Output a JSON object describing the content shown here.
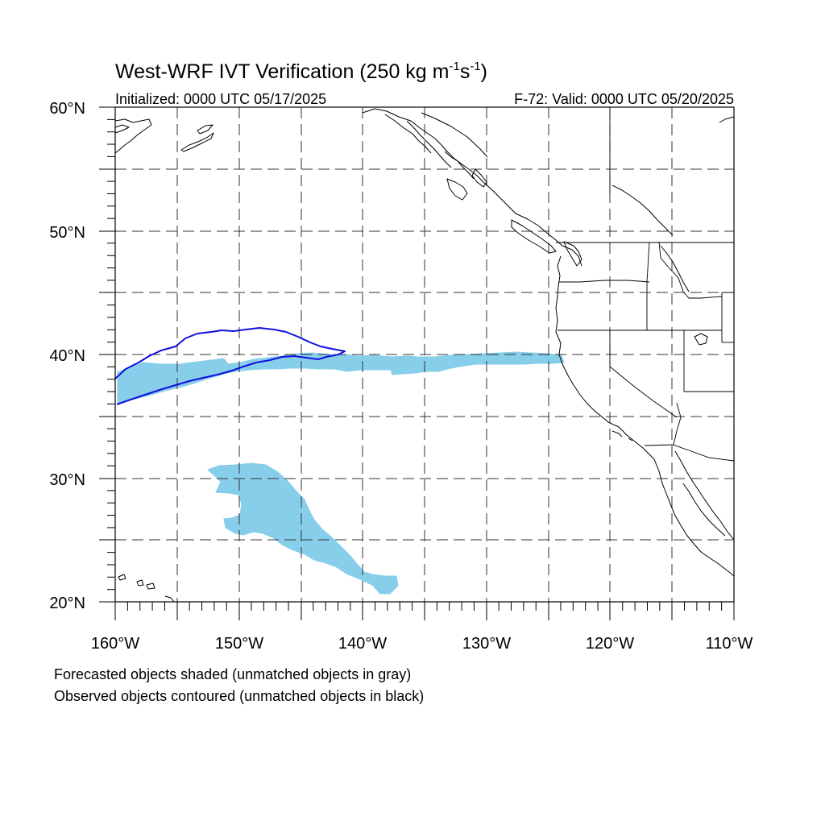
{
  "title": {
    "main": "West-WRF IVT Verification (250 kg m",
    "exp1": "-1",
    "mid": "s",
    "exp2": "-1",
    "close": ")"
  },
  "initialized": "Initialized: 0000 UTC 05/17/2025",
  "valid": "F-72: Valid: 0000 UTC 05/20/2025",
  "map": {
    "lon_range": [
      -160,
      -110
    ],
    "lat_range": [
      20,
      60
    ],
    "lat_labels": [
      "60°N",
      "50°N",
      "40°N",
      "30°N",
      "20°N"
    ],
    "lon_labels": [
      "160°W",
      "150°W",
      "140°W",
      "130°W",
      "120°W",
      "110°W"
    ],
    "grid_lon": [
      -155,
      -150,
      -145,
      -140,
      -135,
      -130,
      -125,
      -120,
      -115
    ],
    "grid_lat": [
      25,
      30,
      35,
      40,
      45,
      50,
      55
    ],
    "colors": {
      "forecast_fill": "#87ceeb",
      "observed_contour": "#1010dd"
    },
    "features": [
      {
        "name": "forecast-object-atmospheric-river",
        "type": "forecast",
        "approx_extent": {
          "lon": [
            -160,
            -124
          ],
          "lat": [
            36,
            40
          ]
        }
      },
      {
        "name": "forecast-object-southern",
        "type": "forecast",
        "approx_extent": {
          "lon": [
            -158,
            -137
          ],
          "lat": [
            21,
            31
          ]
        }
      },
      {
        "name": "observed-object-contour",
        "type": "observed",
        "approx_extent": {
          "lon": [
            -160,
            -141
          ],
          "lat": [
            36,
            42
          ]
        }
      }
    ]
  },
  "notes": {
    "line1": "Forecasted objects shaded (unmatched objects in gray)",
    "line2": "Observed objects contoured (unmatched objects in black)"
  }
}
